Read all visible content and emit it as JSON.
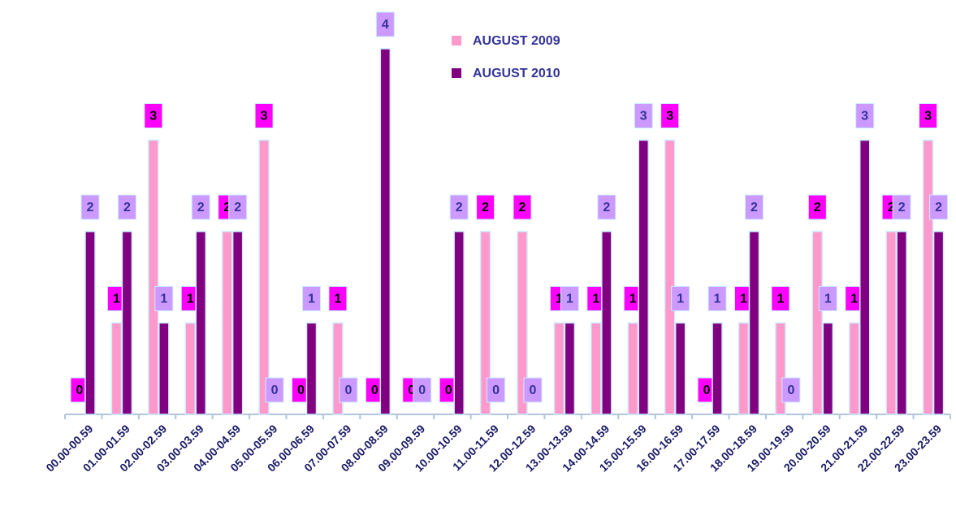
{
  "chart_data": {
    "type": "bar",
    "categories": [
      "00.00-00.59",
      "01.00-01.59",
      "02.00-02.59",
      "03.00-03.59",
      "04.00-04.59",
      "05.00-05.59",
      "06.00-06.59",
      "07.00-07.59",
      "08.00-08.59",
      "09.00-09.59",
      "10.00-10.59",
      "11.00-11.59",
      "12.00-12.59",
      "13.00-13.59",
      "14.00-14.59",
      "15.00-15.59",
      "16.00-16.59",
      "17.00-17.59",
      "18.00-18.59",
      "19.00-19.59",
      "20.00-20.59",
      "21.00-21.59",
      "22.00-22.59",
      "23.00-23.59"
    ],
    "series": [
      {
        "name": "AUGUST 2009",
        "color": "#ff99cc",
        "label_color": "#ff00ff",
        "values": [
          0,
          1,
          3,
          1,
          2,
          3,
          0,
          1,
          0,
          0,
          0,
          2,
          2,
          1,
          1,
          1,
          3,
          0,
          1,
          1,
          2,
          1,
          2,
          3
        ]
      },
      {
        "name": "AUGUST 2010",
        "color": "#800080",
        "label_color": "#cc99ff",
        "values": [
          2,
          2,
          1,
          2,
          2,
          0,
          1,
          0,
          4,
          0,
          2,
          0,
          0,
          1,
          2,
          3,
          1,
          1,
          2,
          0,
          1,
          3,
          2,
          2
        ]
      }
    ],
    "ylim": [
      0,
      4
    ],
    "legend": "top"
  }
}
